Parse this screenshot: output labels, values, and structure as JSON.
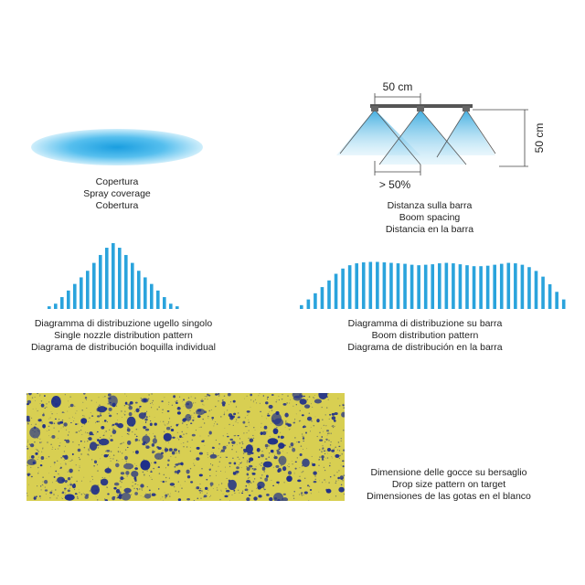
{
  "coverage": {
    "lines": [
      "Copertura",
      "Spray coverage",
      "Cobertura"
    ],
    "color": "#2aa3dc"
  },
  "boom": {
    "spacing_label": "50 cm",
    "height_label": "50 cm",
    "overlap_label": "> 50%",
    "lines": [
      "Distanza sulla barra",
      "Boom spacing",
      "Distancia en la barra"
    ]
  },
  "single_pattern": {
    "lines": [
      "Diagramma di distribuzione ugello singolo",
      "Single nozzle distribution pattern",
      "Diagrama de distribución boquilla individual"
    ],
    "relative_heights": [
      0.04,
      0.08,
      0.18,
      0.28,
      0.38,
      0.48,
      0.58,
      0.7,
      0.82,
      0.93,
      1.0,
      0.93,
      0.82,
      0.7,
      0.58,
      0.48,
      0.38,
      0.28,
      0.18,
      0.08,
      0.04
    ]
  },
  "boom_pattern": {
    "lines": [
      "Diagramma di distribuzione su barra",
      "Boom distribution pattern",
      "Diagrama de distribución en la barra"
    ],
    "relative_heights": [
      0.08,
      0.2,
      0.33,
      0.46,
      0.6,
      0.74,
      0.85,
      0.92,
      0.96,
      0.98,
      0.99,
      0.99,
      0.98,
      0.97,
      0.96,
      0.95,
      0.93,
      0.92,
      0.93,
      0.94,
      0.96,
      0.97,
      0.96,
      0.94,
      0.92,
      0.9,
      0.9,
      0.91,
      0.93,
      0.95,
      0.97,
      0.96,
      0.93,
      0.88,
      0.8,
      0.68,
      0.52,
      0.36,
      0.2
    ]
  },
  "droplets": {
    "lines": [
      "Dimensione delle gocce su bersaglio",
      "Drop size pattern on target",
      "Dimensiones de las gotas en el blanco"
    ],
    "background_color": "#d8cf52",
    "drop_color": "#1f2f8a"
  }
}
